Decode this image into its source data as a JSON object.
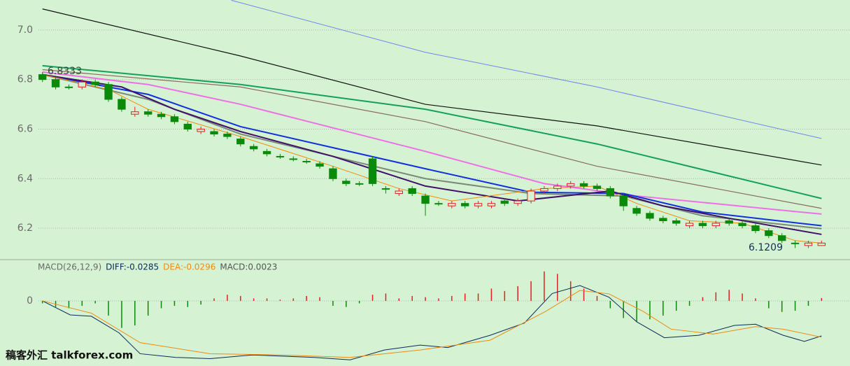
{
  "chart_data": [
    {
      "type": "candlestick",
      "x": [
        0,
        1,
        2,
        3,
        4,
        5,
        6,
        7,
        8,
        9,
        10,
        11,
        12,
        13,
        14,
        15,
        16,
        17,
        18,
        19,
        20,
        21,
        22,
        23,
        24,
        25,
        26,
        27,
        28,
        29,
        30,
        31,
        32,
        33,
        34,
        35,
        36,
        37,
        38,
        39,
        40,
        41,
        42,
        43,
        44,
        45,
        46,
        47,
        48,
        49,
        50,
        51,
        52,
        53,
        54,
        55,
        56,
        57,
        58,
        59
      ],
      "open": [
        6.82,
        6.8,
        6.77,
        6.77,
        6.79,
        6.78,
        6.72,
        6.66,
        6.67,
        6.66,
        6.65,
        6.62,
        6.59,
        6.59,
        6.58,
        6.56,
        6.53,
        6.51,
        6.49,
        6.48,
        6.47,
        6.46,
        6.44,
        6.39,
        6.38,
        6.48,
        6.36,
        6.34,
        6.36,
        6.33,
        6.3,
        6.29,
        6.3,
        6.29,
        6.29,
        6.31,
        6.3,
        6.31,
        6.35,
        6.36,
        6.37,
        6.38,
        6.37,
        6.36,
        6.33,
        6.28,
        6.26,
        6.24,
        6.23,
        6.21,
        6.22,
        6.21,
        6.23,
        6.22,
        6.21,
        6.19,
        6.17,
        6.14,
        6.13,
        6.13
      ],
      "high": [
        6.83,
        6.81,
        6.78,
        6.8,
        6.8,
        6.79,
        6.73,
        6.69,
        6.68,
        6.67,
        6.66,
        6.63,
        6.61,
        6.6,
        6.59,
        6.57,
        6.54,
        6.52,
        6.5,
        6.49,
        6.48,
        6.47,
        6.45,
        6.4,
        6.39,
        6.49,
        6.37,
        6.36,
        6.37,
        6.34,
        6.31,
        6.31,
        6.31,
        6.31,
        6.31,
        6.32,
        6.32,
        6.36,
        6.37,
        6.38,
        6.39,
        6.39,
        6.38,
        6.37,
        6.34,
        6.29,
        6.27,
        6.25,
        6.24,
        6.23,
        6.23,
        6.23,
        6.24,
        6.23,
        6.22,
        6.2,
        6.18,
        6.15,
        6.15,
        6.15
      ],
      "low": [
        6.79,
        6.76,
        6.76,
        6.76,
        6.77,
        6.71,
        6.67,
        6.65,
        6.65,
        6.64,
        6.62,
        6.59,
        6.58,
        6.57,
        6.56,
        6.53,
        6.51,
        6.49,
        6.48,
        6.47,
        6.46,
        6.44,
        6.39,
        6.37,
        6.37,
        6.37,
        6.34,
        6.33,
        6.33,
        6.25,
        6.29,
        6.28,
        6.28,
        6.28,
        6.28,
        6.29,
        6.29,
        6.3,
        6.34,
        6.35,
        6.36,
        6.36,
        6.35,
        6.32,
        6.27,
        6.25,
        6.23,
        6.22,
        6.21,
        6.2,
        6.2,
        6.2,
        6.21,
        6.2,
        6.18,
        6.16,
        6.14,
        6.12,
        6.12,
        6.13
      ],
      "close": [
        6.8,
        6.77,
        6.77,
        6.79,
        6.78,
        6.72,
        6.68,
        6.67,
        6.66,
        6.65,
        6.63,
        6.6,
        6.6,
        6.58,
        6.57,
        6.54,
        6.52,
        6.5,
        6.49,
        6.48,
        6.47,
        6.45,
        6.4,
        6.38,
        6.38,
        6.38,
        6.36,
        6.35,
        6.34,
        6.3,
        6.3,
        6.3,
        6.29,
        6.3,
        6.3,
        6.3,
        6.31,
        6.35,
        6.36,
        6.37,
        6.38,
        6.37,
        6.36,
        6.33,
        6.29,
        6.26,
        6.24,
        6.23,
        6.22,
        6.22,
        6.21,
        6.22,
        6.22,
        6.21,
        6.19,
        6.17,
        6.15,
        6.14,
        6.14,
        6.14
      ],
      "up_color": "#e02020",
      "down_color": "#0a8a0a",
      "series": [
        {
          "color": "#101010",
          "width": 1.2,
          "x": [
            0,
            15,
            29,
            42,
            59
          ],
          "values": [
            7.085,
            6.895,
            6.7,
            6.613,
            6.455
          ]
        },
        {
          "color": "#6f86e8",
          "width": 1,
          "x": [
            14.3,
            29,
            42,
            59
          ],
          "values": [
            7.12,
            6.91,
            6.77,
            6.562
          ]
        },
        {
          "color": "#14a05a",
          "width": 2,
          "x": [
            0,
            15,
            29,
            42,
            59
          ],
          "values": [
            6.856,
            6.78,
            6.68,
            6.54,
            6.32
          ]
        },
        {
          "color": "#8a6a5a",
          "width": 1.2,
          "x": [
            0,
            15,
            29,
            42,
            59
          ],
          "values": [
            6.84,
            6.77,
            6.63,
            6.45,
            6.28
          ]
        },
        {
          "color": "#f06ee8",
          "width": 2,
          "x": [
            0,
            8,
            15,
            29,
            38,
            45,
            59
          ],
          "values": [
            6.83,
            6.78,
            6.7,
            6.51,
            6.38,
            6.33,
            6.257
          ]
        },
        {
          "color": "#1030e0",
          "width": 2,
          "x": [
            0,
            8,
            15,
            29,
            37,
            44,
            50,
            59
          ],
          "values": [
            6.82,
            6.74,
            6.61,
            6.44,
            6.345,
            6.34,
            6.265,
            6.21
          ]
        },
        {
          "color": "#7a8a7a",
          "width": 2,
          "x": [
            0,
            8,
            15,
            29,
            37,
            44,
            50,
            59
          ],
          "values": [
            6.82,
            6.72,
            6.58,
            6.4,
            6.34,
            6.33,
            6.25,
            6.198
          ]
        },
        {
          "color": "#40106a",
          "width": 2,
          "x": [
            0,
            6,
            10,
            15,
            22,
            29,
            36,
            43,
            47,
            52,
            59
          ],
          "values": [
            6.82,
            6.77,
            6.68,
            6.59,
            6.49,
            6.37,
            6.31,
            6.35,
            6.29,
            6.24,
            6.175
          ]
        },
        {
          "color": "#f08a10",
          "width": 1,
          "x": [
            0,
            5,
            8,
            15,
            22,
            27,
            31,
            38,
            42,
            45,
            49,
            53,
            57,
            59
          ],
          "values": [
            6.82,
            6.76,
            6.68,
            6.57,
            6.45,
            6.36,
            6.31,
            6.36,
            6.37,
            6.3,
            6.23,
            6.22,
            6.15,
            6.14
          ]
        }
      ],
      "annotations": [
        {
          "text": "6.8333",
          "value": 6.8333
        },
        {
          "text": "6.1209",
          "value": 6.1209
        }
      ],
      "xlim": [
        -0.3,
        59.3
      ],
      "ylim": [
        6.076,
        7.121
      ],
      "yticks": [
        6.2,
        6.4,
        6.6,
        6.8,
        {
          "value": 7,
          "label": "7.0"
        }
      ],
      "grid": true
    },
    {
      "type": "macd",
      "title": "MACD(26,12,9)",
      "x": [
        0,
        1,
        2,
        3,
        4,
        5,
        6,
        7,
        8,
        9,
        10,
        11,
        12,
        13,
        14,
        15,
        16,
        17,
        18,
        19,
        20,
        21,
        22,
        23,
        24,
        25,
        26,
        27,
        28,
        29,
        30,
        31,
        32,
        33,
        34,
        35,
        36,
        37,
        38,
        39,
        40,
        41,
        42,
        43,
        44,
        45,
        46,
        47,
        48,
        49,
        50,
        51,
        52,
        53,
        54,
        55,
        56,
        57,
        58,
        59
      ],
      "histogram": {
        "name": "MACD:0.0023",
        "color": "#555555",
        "up_color": "#e02020",
        "down_color": "#0a8a0a",
        "values": [
          -0.002,
          -0.005,
          -0.006,
          -0.004,
          -0.002,
          -0.012,
          -0.022,
          -0.02,
          -0.012,
          -0.006,
          -0.004,
          -0.005,
          -0.003,
          0.002,
          0.005,
          0.004,
          0.002,
          0.002,
          0.001,
          0.002,
          0.004,
          0.003,
          -0.004,
          -0.005,
          -0.002,
          0.005,
          0.006,
          0.002,
          0.004,
          0.003,
          0.002,
          0.004,
          0.006,
          0.006,
          0.01,
          0.008,
          0.012,
          0.016,
          0.024,
          0.022,
          0.016,
          0.01,
          0.004,
          -0.006,
          -0.014,
          -0.017,
          -0.015,
          -0.012,
          -0.008,
          -0.004,
          0.003,
          0.007,
          0.009,
          0.006,
          0.002,
          -0.006,
          -0.009,
          -0.008,
          -0.004,
          0.0023
        ]
      },
      "series": [
        {
          "name": "DIFF:-0.0285",
          "color": "#0a2a5a",
          "x": [
            0,
            2.1,
            3.7,
            5.8,
            7.4,
            10.1,
            12.7,
            15.9,
            20.6,
            23.3,
            25.9,
            28.6,
            30.7,
            33.9,
            36.5,
            38.6,
            40.7,
            42.9,
            45,
            47.1,
            49.7,
            52.4,
            54,
            56.1,
            57.7,
            59
          ],
          "values": [
            0,
            -0.0114,
            -0.0125,
            -0.026,
            -0.043,
            -0.046,
            -0.047,
            -0.044,
            -0.046,
            -0.048,
            -0.04,
            -0.036,
            -0.038,
            -0.028,
            -0.018,
            0.006,
            0.0125,
            0.003,
            -0.017,
            -0.03,
            -0.028,
            -0.02,
            -0.019,
            -0.028,
            -0.033,
            -0.0285
          ]
        },
        {
          "name": "DEA:-0.0296",
          "color": "#f08a10",
          "x": [
            0,
            3.7,
            7.4,
            12.7,
            18,
            23.3,
            28.6,
            33.9,
            38.1,
            40.7,
            42.9,
            45.5,
            47.6,
            50.8,
            54,
            56.1,
            59
          ],
          "values": [
            0,
            -0.01,
            -0.034,
            -0.043,
            -0.044,
            -0.046,
            -0.04,
            -0.032,
            -0.0086,
            0.0085,
            0.0057,
            -0.0086,
            -0.023,
            -0.027,
            -0.021,
            -0.023,
            -0.0296
          ]
        }
      ],
      "xlim": [
        -0.3,
        59.3
      ],
      "ylim": [
        -0.053,
        0.033
      ],
      "yticks": [
        0
      ],
      "grid": true
    }
  ],
  "watermark": "稿客外汇 talkforex.com"
}
